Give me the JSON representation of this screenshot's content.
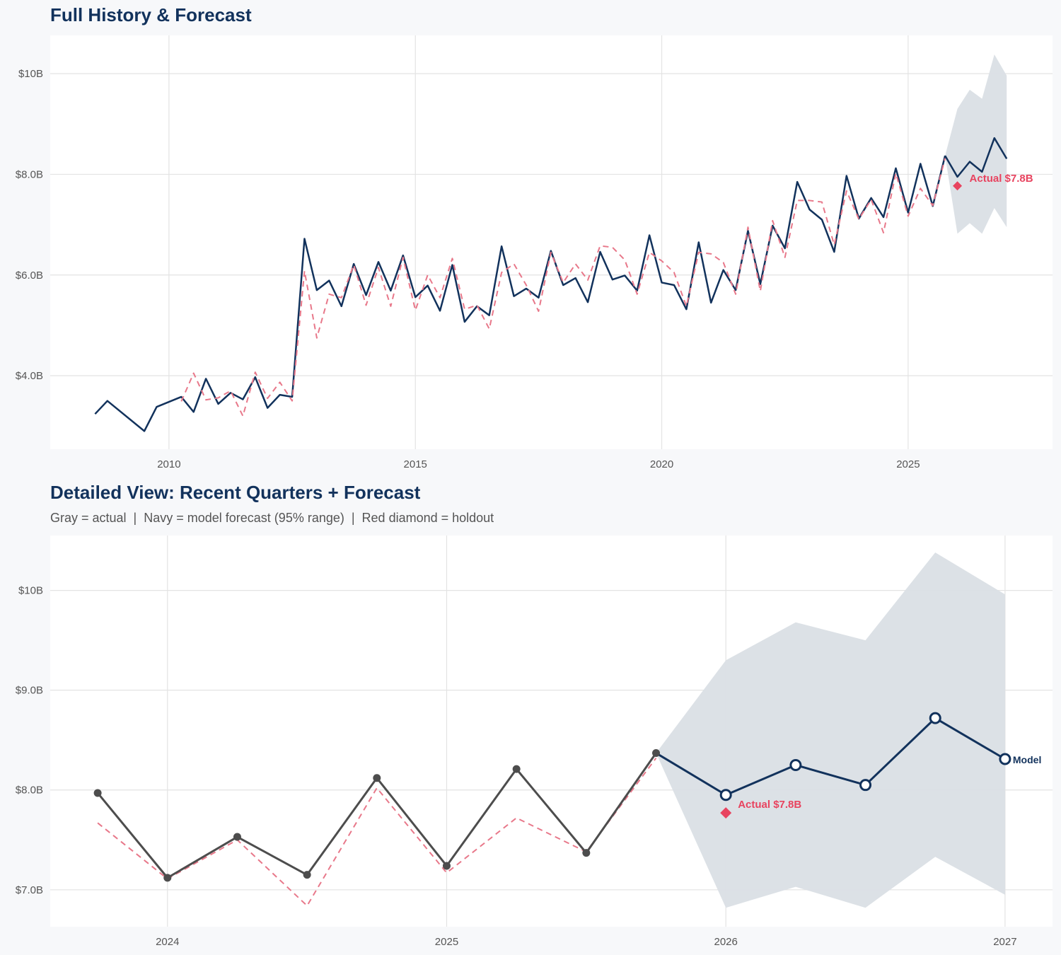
{
  "chart_data": [
    {
      "type": "line",
      "title": "Full History & Forecast",
      "xlim": [
        2007.59,
        2027.93
      ],
      "ylim": [
        2.54,
        10.76
      ],
      "x_ticks": [
        2010,
        2015,
        2020,
        2025
      ],
      "x_tick_labels": [
        "2010",
        "2015",
        "2020",
        "2025"
      ],
      "y_ticks": [
        4,
        6,
        8,
        10
      ],
      "y_tick_labels": [
        "$4.0B",
        "$6.0B",
        "$8.0B",
        "$10B"
      ],
      "grid": true,
      "series": [
        {
          "role": "actual",
          "color": "#12325c",
          "x": [
            2008.5,
            2008.75,
            2009.5,
            2009.75,
            2010.25,
            2010.5,
            2010.75,
            2011.0,
            2011.25,
            2011.5,
            2011.75,
            2012.0,
            2012.25,
            2012.5,
            2012.75,
            2013.0,
            2013.25,
            2013.5,
            2013.75,
            2014.0,
            2014.25,
            2014.5,
            2014.75,
            2015.0,
            2015.25,
            2015.5,
            2015.75,
            2016.0,
            2016.25,
            2016.5,
            2016.75,
            2017.0,
            2017.25,
            2017.5,
            2017.75,
            2018.0,
            2018.25,
            2018.5,
            2018.75,
            2019.0,
            2019.25,
            2019.5,
            2019.75,
            2020.0,
            2020.25,
            2020.5,
            2020.75,
            2021.0,
            2021.25,
            2021.5,
            2021.75,
            2022.0,
            2022.25,
            2022.5,
            2022.75,
            2023.0,
            2023.25,
            2023.5,
            2023.75,
            2024.0,
            2024.25,
            2024.5,
            2024.75,
            2025.0,
            2025.25,
            2025.5,
            2025.75
          ],
          "values": [
            3.24,
            3.5,
            2.9,
            3.38,
            3.58,
            3.28,
            3.94,
            3.44,
            3.66,
            3.53,
            3.97,
            3.36,
            3.62,
            3.58,
            6.72,
            5.7,
            5.89,
            5.38,
            6.22,
            5.6,
            6.26,
            5.69,
            6.39,
            5.56,
            5.79,
            5.29,
            6.2,
            5.07,
            5.38,
            5.2,
            6.57,
            5.58,
            5.73,
            5.55,
            6.48,
            5.8,
            5.94,
            5.46,
            6.46,
            5.91,
            5.99,
            5.69,
            6.79,
            5.85,
            5.8,
            5.32,
            6.65,
            5.45,
            6.1,
            5.7,
            6.88,
            5.82,
            6.98,
            6.53,
            7.85,
            7.3,
            7.1,
            6.46,
            7.97,
            7.12,
            7.53,
            7.15,
            8.12,
            7.24,
            8.21,
            7.37,
            8.37
          ]
        },
        {
          "role": "fitted",
          "color": "#e8788a",
          "dash": true,
          "x": [
            2010.25,
            2010.5,
            2010.75,
            2011.0,
            2011.25,
            2011.5,
            2011.75,
            2012.0,
            2012.25,
            2012.5,
            2012.75,
            2013.0,
            2013.25,
            2013.5,
            2013.75,
            2014.0,
            2014.25,
            2014.5,
            2014.75,
            2015.0,
            2015.25,
            2015.5,
            2015.75,
            2016.0,
            2016.25,
            2016.5,
            2016.75,
            2017.0,
            2017.25,
            2017.5,
            2017.75,
            2018.0,
            2018.25,
            2018.5,
            2018.75,
            2019.0,
            2019.25,
            2019.5,
            2019.75,
            2020.0,
            2020.25,
            2020.5,
            2020.75,
            2021.0,
            2021.25,
            2021.5,
            2021.75,
            2022.0,
            2022.25,
            2022.5,
            2022.75,
            2023.0,
            2023.25,
            2023.5,
            2023.75,
            2024.0,
            2024.25,
            2024.5,
            2024.75,
            2025.0,
            2025.25,
            2025.5,
            2025.75
          ],
          "values": [
            3.49,
            4.05,
            3.52,
            3.56,
            3.7,
            3.2,
            4.07,
            3.55,
            3.87,
            3.5,
            6.08,
            4.75,
            5.62,
            5.55,
            6.2,
            5.4,
            6.15,
            5.38,
            6.35,
            5.3,
            6.0,
            5.55,
            6.33,
            5.32,
            5.4,
            4.93,
            6.05,
            6.22,
            5.8,
            5.28,
            6.45,
            5.85,
            6.22,
            5.9,
            6.58,
            6.55,
            6.3,
            5.62,
            6.45,
            6.28,
            6.05,
            5.38,
            6.45,
            6.42,
            6.25,
            5.62,
            6.95,
            5.68,
            7.08,
            6.35,
            7.48,
            7.48,
            7.45,
            6.6,
            7.67,
            7.11,
            7.5,
            6.84,
            8.02,
            7.17,
            7.72,
            7.38,
            8.32
          ]
        },
        {
          "role": "forecast",
          "color": "#12325c",
          "x": [
            2025.75,
            2026.0,
            2026.25,
            2026.5,
            2026.75,
            2027.0
          ],
          "values": [
            8.37,
            7.95,
            8.25,
            8.05,
            8.72,
            8.31
          ]
        }
      ],
      "band": {
        "color": "#dadfe5",
        "x": [
          2025.75,
          2026.0,
          2026.25,
          2026.5,
          2026.75,
          2027.0
        ],
        "lower": [
          8.37,
          6.82,
          7.03,
          6.82,
          7.33,
          6.95
        ],
        "upper": [
          8.37,
          9.3,
          9.68,
          9.5,
          10.38,
          9.96
        ]
      },
      "holdout": {
        "x": 2026.0,
        "value": 7.77,
        "color": "#e8435f",
        "label": "Actual $7.8B"
      }
    },
    {
      "type": "line",
      "title": "Detailed View: Recent Quarters + Forecast",
      "subtitle": "Gray = actual  |  Navy = model forecast (95% range)  |  Red diamond = holdout",
      "xlim": [
        2023.58,
        2027.17
      ],
      "ylim": [
        6.63,
        10.55
      ],
      "x_ticks": [
        2024,
        2025,
        2026,
        2027
      ],
      "x_tick_labels": [
        "2024",
        "2025",
        "2026",
        "2027"
      ],
      "y_ticks": [
        7,
        8,
        9,
        10
      ],
      "y_tick_labels": [
        "$7.0B",
        "$8.0B",
        "$9.0B",
        "$10B"
      ],
      "grid": true,
      "series": [
        {
          "role": "fitted",
          "color": "#e8788a",
          "dash": true,
          "x": [
            2023.75,
            2024.0,
            2024.25,
            2024.5,
            2024.75,
            2025.0,
            2025.25,
            2025.5,
            2025.75
          ],
          "values": [
            7.67,
            7.11,
            7.5,
            6.84,
            8.02,
            7.17,
            7.72,
            7.38,
            8.32
          ]
        },
        {
          "role": "actual",
          "color": "#4d4d4d",
          "markers": "filled",
          "x": [
            2023.75,
            2024.0,
            2024.25,
            2024.5,
            2024.75,
            2025.0,
            2025.25,
            2025.5,
            2025.75
          ],
          "values": [
            7.97,
            7.12,
            7.53,
            7.15,
            8.12,
            7.24,
            8.21,
            7.37,
            8.37
          ]
        },
        {
          "role": "forecast",
          "color": "#12325c",
          "markers": "open",
          "label": "Model",
          "x": [
            2025.75,
            2026.0,
            2026.25,
            2026.5,
            2026.75,
            2027.0
          ],
          "values": [
            8.37,
            7.95,
            8.25,
            8.05,
            8.72,
            8.31
          ]
        }
      ],
      "band": {
        "color": "#dadfe5",
        "x": [
          2025.75,
          2026.0,
          2026.25,
          2026.5,
          2026.75,
          2027.0
        ],
        "lower": [
          8.37,
          6.82,
          7.03,
          6.82,
          7.33,
          6.95
        ],
        "upper": [
          8.37,
          9.3,
          9.68,
          9.5,
          10.38,
          9.96
        ]
      },
      "holdout": {
        "x": 2026.0,
        "value": 7.77,
        "color": "#e8435f",
        "label": "Actual $7.8B"
      }
    }
  ]
}
